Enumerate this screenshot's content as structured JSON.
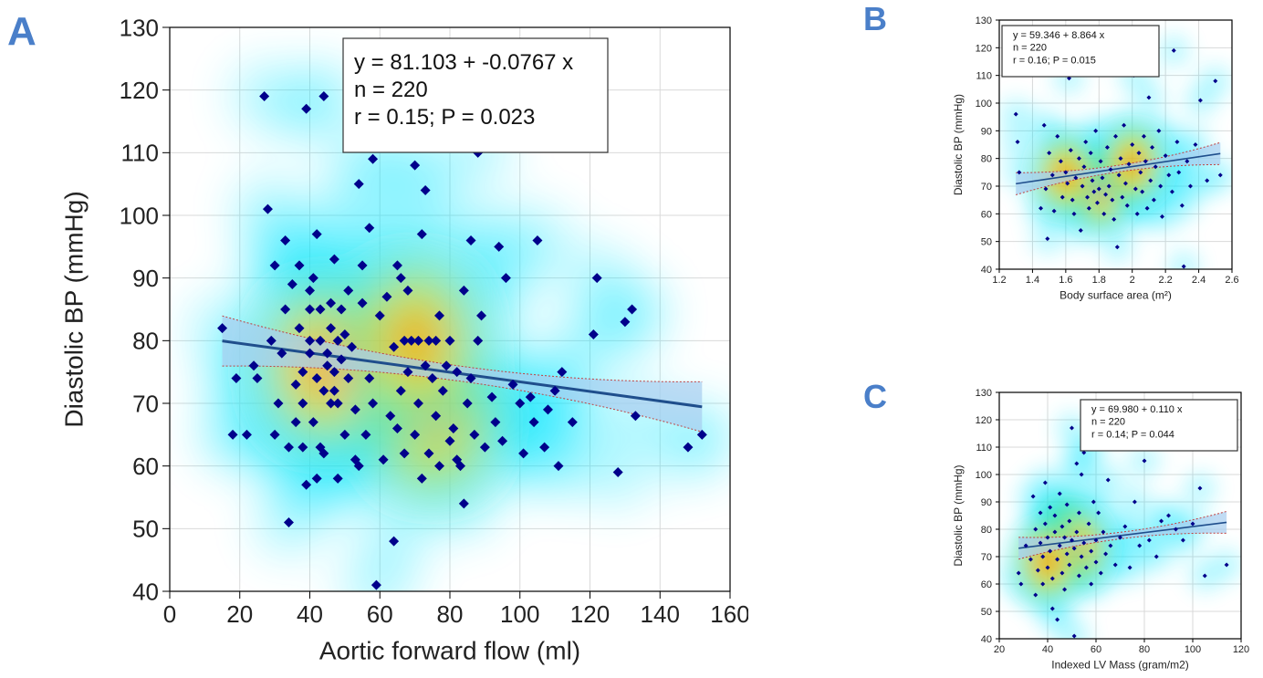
{
  "panels": [
    {
      "letter": "A",
      "equation": "y = 81.103  +  -0.0767  x",
      "n_text": "n = 220",
      "stats_text": "r = 0.15; P = 0.023"
    },
    {
      "letter": "B",
      "equation": "y = 59.346  +  8.864  x",
      "n_text": "n = 220",
      "stats_text": "r = 0.16; P = 0.015"
    },
    {
      "letter": "C",
      "equation": "y = 69.980  +  0.110  x",
      "n_text": "n = 220",
      "stats_text": "r = 0.14; P = 0.044"
    }
  ],
  "colors": {
    "point": "#00008b",
    "regression_line": "#1f4e8c",
    "ci_fill": "#a8cdf0",
    "ci_border": "#c04040",
    "grid": "#d9d9d9",
    "letter": "#4a7fc9"
  },
  "chart_data": [
    {
      "type": "scatter",
      "xlabel": "Aortic forward flow (ml)",
      "ylabel": "Diastolic BP (mmHg)",
      "xlim": [
        0,
        160
      ],
      "ylim": [
        40,
        130
      ],
      "xticks": [
        0,
        20,
        40,
        60,
        80,
        100,
        120,
        140,
        160
      ],
      "yticks": [
        40,
        50,
        60,
        70,
        80,
        90,
        100,
        110,
        120,
        130
      ],
      "grid": true,
      "density_overlay": true,
      "density_centers": [
        [
          45,
          76
        ],
        [
          75,
          68
        ],
        [
          70,
          80
        ]
      ],
      "regression": {
        "intercept": 81.103,
        "slope": -0.0767,
        "x_range": [
          15,
          152
        ],
        "ci_half_width_at_ends": 4
      },
      "points": [
        [
          15,
          82
        ],
        [
          18,
          65
        ],
        [
          19,
          74
        ],
        [
          22,
          65
        ],
        [
          24,
          76
        ],
        [
          25,
          74
        ],
        [
          27,
          119
        ],
        [
          28,
          101
        ],
        [
          29,
          80
        ],
        [
          30,
          65
        ],
        [
          30,
          92
        ],
        [
          31,
          70
        ],
        [
          32,
          78
        ],
        [
          33,
          96
        ],
        [
          33,
          85
        ],
        [
          34,
          51
        ],
        [
          34,
          63
        ],
        [
          35,
          89
        ],
        [
          36,
          73
        ],
        [
          36,
          67
        ],
        [
          37,
          92
        ],
        [
          37,
          82
        ],
        [
          38,
          63
        ],
        [
          38,
          70
        ],
        [
          38,
          75
        ],
        [
          39,
          117
        ],
        [
          39,
          57
        ],
        [
          40,
          88
        ],
        [
          40,
          85
        ],
        [
          40,
          80
        ],
        [
          40,
          78
        ],
        [
          41,
          90
        ],
        [
          41,
          67
        ],
        [
          42,
          58
        ],
        [
          42,
          97
        ],
        [
          42,
          74
        ],
        [
          43,
          63
        ],
        [
          43,
          85
        ],
        [
          43,
          80
        ],
        [
          44,
          119
        ],
        [
          44,
          62
        ],
        [
          44,
          72
        ],
        [
          45,
          78
        ],
        [
          45,
          76
        ],
        [
          46,
          86
        ],
        [
          46,
          82
        ],
        [
          46,
          70
        ],
        [
          47,
          93
        ],
        [
          47,
          75
        ],
        [
          47,
          72
        ],
        [
          48,
          80
        ],
        [
          48,
          70
        ],
        [
          48,
          58
        ],
        [
          49,
          85
        ],
        [
          49,
          77
        ],
        [
          50,
          81
        ],
        [
          50,
          65
        ],
        [
          51,
          88
        ],
        [
          51,
          74
        ],
        [
          52,
          79
        ],
        [
          53,
          69
        ],
        [
          53,
          61
        ],
        [
          54,
          105
        ],
        [
          54,
          60
        ],
        [
          55,
          92
        ],
        [
          55,
          86
        ],
        [
          56,
          65
        ],
        [
          57,
          98
        ],
        [
          57,
          74
        ],
        [
          58,
          109
        ],
        [
          58,
          70
        ],
        [
          59,
          41
        ],
        [
          60,
          84
        ],
        [
          61,
          61
        ],
        [
          62,
          87
        ],
        [
          63,
          68
        ],
        [
          64,
          48
        ],
        [
          64,
          79
        ],
        [
          65,
          92
        ],
        [
          65,
          66
        ],
        [
          66,
          90
        ],
        [
          66,
          72
        ],
        [
          67,
          80
        ],
        [
          67,
          62
        ],
        [
          68,
          88
        ],
        [
          68,
          75
        ],
        [
          69,
          80
        ],
        [
          70,
          108
        ],
        [
          70,
          65
        ],
        [
          71,
          80
        ],
        [
          71,
          70
        ],
        [
          72,
          97
        ],
        [
          72,
          58
        ],
        [
          73,
          104
        ],
        [
          73,
          76
        ],
        [
          74,
          80
        ],
        [
          74,
          62
        ],
        [
          75,
          74
        ],
        [
          76,
          80
        ],
        [
          76,
          68
        ],
        [
          77,
          84
        ],
        [
          77,
          60
        ],
        [
          78,
          72
        ],
        [
          79,
          76
        ],
        [
          80,
          80
        ],
        [
          80,
          64
        ],
        [
          81,
          66
        ],
        [
          82,
          75
        ],
        [
          82,
          61
        ],
        [
          83,
          60
        ],
        [
          84,
          54
        ],
        [
          84,
          88
        ],
        [
          85,
          70
        ],
        [
          86,
          96
        ],
        [
          86,
          74
        ],
        [
          87,
          65
        ],
        [
          88,
          110
        ],
        [
          88,
          80
        ],
        [
          89,
          84
        ],
        [
          90,
          63
        ],
        [
          92,
          71
        ],
        [
          93,
          67
        ],
        [
          94,
          95
        ],
        [
          95,
          64
        ],
        [
          96,
          90
        ],
        [
          98,
          73
        ],
        [
          100,
          70
        ],
        [
          101,
          62
        ],
        [
          103,
          71
        ],
        [
          104,
          67
        ],
        [
          105,
          96
        ],
        [
          107,
          63
        ],
        [
          108,
          69
        ],
        [
          110,
          72
        ],
        [
          111,
          60
        ],
        [
          112,
          75
        ],
        [
          115,
          67
        ],
        [
          121,
          81
        ],
        [
          122,
          90
        ],
        [
          128,
          59
        ],
        [
          130,
          83
        ],
        [
          132,
          85
        ],
        [
          133,
          68
        ],
        [
          148,
          63
        ],
        [
          152,
          65
        ]
      ]
    },
    {
      "type": "scatter",
      "xlabel": "Body surface area (m²)",
      "ylabel": "Diastolic BP (mmHg)",
      "xlim": [
        1.2,
        2.6
      ],
      "ylim": [
        40,
        130
      ],
      "xticks": [
        1.2,
        1.4,
        1.6,
        1.8,
        2.0,
        2.2,
        2.4,
        2.6
      ],
      "yticks": [
        40,
        50,
        60,
        70,
        80,
        90,
        100,
        110,
        120,
        130
      ],
      "grid": true,
      "density_overlay": true,
      "density_centers": [
        [
          1.8,
          69
        ],
        [
          2.0,
          78
        ],
        [
          1.6,
          74
        ]
      ],
      "regression": {
        "intercept": 59.346,
        "slope": 8.864,
        "x_range": [
          1.3,
          2.53
        ],
        "ci_half_width_at_ends": 4
      },
      "points": [
        [
          1.3,
          96
        ],
        [
          1.31,
          86
        ],
        [
          1.32,
          75
        ],
        [
          1.45,
          62
        ],
        [
          1.47,
          92
        ],
        [
          1.48,
          69
        ],
        [
          1.49,
          51
        ],
        [
          1.5,
          82
        ],
        [
          1.52,
          74
        ],
        [
          1.53,
          61
        ],
        [
          1.55,
          88
        ],
        [
          1.57,
          79
        ],
        [
          1.58,
          66
        ],
        [
          1.6,
          75
        ],
        [
          1.61,
          71
        ],
        [
          1.62,
          109
        ],
        [
          1.63,
          83
        ],
        [
          1.64,
          65
        ],
        [
          1.65,
          60
        ],
        [
          1.66,
          73
        ],
        [
          1.68,
          80
        ],
        [
          1.69,
          54
        ],
        [
          1.7,
          70
        ],
        [
          1.71,
          77
        ],
        [
          1.72,
          86
        ],
        [
          1.73,
          66
        ],
        [
          1.74,
          62
        ],
        [
          1.75,
          82
        ],
        [
          1.76,
          72
        ],
        [
          1.77,
          68
        ],
        [
          1.78,
          90
        ],
        [
          1.79,
          64
        ],
        [
          1.8,
          69
        ],
        [
          1.81,
          79
        ],
        [
          1.82,
          73
        ],
        [
          1.83,
          60
        ],
        [
          1.84,
          67
        ],
        [
          1.85,
          84
        ],
        [
          1.86,
          70
        ],
        [
          1.87,
          76
        ],
        [
          1.88,
          65
        ],
        [
          1.89,
          58
        ],
        [
          1.9,
          88
        ],
        [
          1.91,
          48
        ],
        [
          1.92,
          74
        ],
        [
          1.93,
          80
        ],
        [
          1.94,
          66
        ],
        [
          1.95,
          92
        ],
        [
          1.96,
          71
        ],
        [
          1.97,
          63
        ],
        [
          1.98,
          78
        ],
        [
          2.0,
          85
        ],
        [
          2.01,
          110
        ],
        [
          2.02,
          69
        ],
        [
          2.03,
          60
        ],
        [
          2.04,
          82
        ],
        [
          2.05,
          75
        ],
        [
          2.06,
          68
        ],
        [
          2.07,
          88
        ],
        [
          2.08,
          79
        ],
        [
          2.09,
          62
        ],
        [
          2.1,
          102
        ],
        [
          2.11,
          72
        ],
        [
          2.12,
          84
        ],
        [
          2.13,
          65
        ],
        [
          2.14,
          77
        ],
        [
          2.16,
          90
        ],
        [
          2.17,
          70
        ],
        [
          2.18,
          59
        ],
        [
          2.2,
          81
        ],
        [
          2.22,
          74
        ],
        [
          2.24,
          68
        ],
        [
          2.25,
          119
        ],
        [
          2.27,
          86
        ],
        [
          2.28,
          75
        ],
        [
          2.3,
          63
        ],
        [
          2.31,
          41
        ],
        [
          2.33,
          79
        ],
        [
          2.35,
          70
        ],
        [
          2.38,
          85
        ],
        [
          2.41,
          101
        ],
        [
          2.45,
          72
        ],
        [
          2.5,
          108
        ],
        [
          2.53,
          74
        ]
      ]
    },
    {
      "type": "scatter",
      "xlabel": "Indexed LV Mass (gram/m2)",
      "ylabel": "Diastolic BP (mmHg)",
      "xlim": [
        20,
        120
      ],
      "ylim": [
        40,
        130
      ],
      "xticks": [
        20,
        40,
        60,
        80,
        100,
        120
      ],
      "yticks": [
        40,
        50,
        60,
        70,
        80,
        90,
        100,
        110,
        120,
        130
      ],
      "grid": true,
      "density_overlay": true,
      "density_centers": [
        [
          48,
          77
        ],
        [
          52,
          73
        ],
        [
          40,
          68
        ]
      ],
      "regression": {
        "intercept": 69.98,
        "slope": 0.11,
        "x_range": [
          28,
          114
        ],
        "ci_half_width_at_ends": 4
      },
      "points": [
        [
          28,
          64
        ],
        [
          29,
          60
        ],
        [
          31,
          74
        ],
        [
          33,
          69
        ],
        [
          34,
          92
        ],
        [
          35,
          80
        ],
        [
          35,
          56
        ],
        [
          36,
          65
        ],
        [
          37,
          86
        ],
        [
          37,
          75
        ],
        [
          38,
          70
        ],
        [
          38,
          60
        ],
        [
          39,
          97
        ],
        [
          39,
          82
        ],
        [
          40,
          77
        ],
        [
          40,
          66
        ],
        [
          41,
          88
        ],
        [
          41,
          72
        ],
        [
          42,
          62
        ],
        [
          42,
          51
        ],
        [
          43,
          85
        ],
        [
          43,
          79
        ],
        [
          44,
          69
        ],
        [
          44,
          47
        ],
        [
          45,
          93
        ],
        [
          45,
          74
        ],
        [
          46,
          81
        ],
        [
          46,
          64
        ],
        [
          47,
          77
        ],
        [
          47,
          58
        ],
        [
          48,
          89
        ],
        [
          48,
          71
        ],
        [
          49,
          83
        ],
        [
          49,
          67
        ],
        [
          50,
          117
        ],
        [
          50,
          76
        ],
        [
          51,
          41
        ],
        [
          51,
          73
        ],
        [
          52,
          104
        ],
        [
          52,
          79
        ],
        [
          53,
          63
        ],
        [
          53,
          86
        ],
        [
          54,
          70
        ],
        [
          54,
          100
        ],
        [
          55,
          108
        ],
        [
          55,
          75
        ],
        [
          56,
          66
        ],
        [
          57,
          110
        ],
        [
          57,
          82
        ],
        [
          58,
          72
        ],
        [
          58,
          60
        ],
        [
          59,
          90
        ],
        [
          60,
          76
        ],
        [
          60,
          68
        ],
        [
          61,
          86
        ],
        [
          62,
          64
        ],
        [
          63,
          79
        ],
        [
          64,
          71
        ],
        [
          65,
          98
        ],
        [
          66,
          74
        ],
        [
          68,
          67
        ],
        [
          70,
          77
        ],
        [
          72,
          81
        ],
        [
          74,
          66
        ],
        [
          76,
          90
        ],
        [
          78,
          74
        ],
        [
          80,
          105
        ],
        [
          82,
          76
        ],
        [
          85,
          70
        ],
        [
          87,
          83
        ],
        [
          90,
          85
        ],
        [
          93,
          80
        ],
        [
          96,
          76
        ],
        [
          100,
          82
        ],
        [
          103,
          95
        ],
        [
          105,
          63
        ],
        [
          114,
          67
        ]
      ]
    }
  ]
}
